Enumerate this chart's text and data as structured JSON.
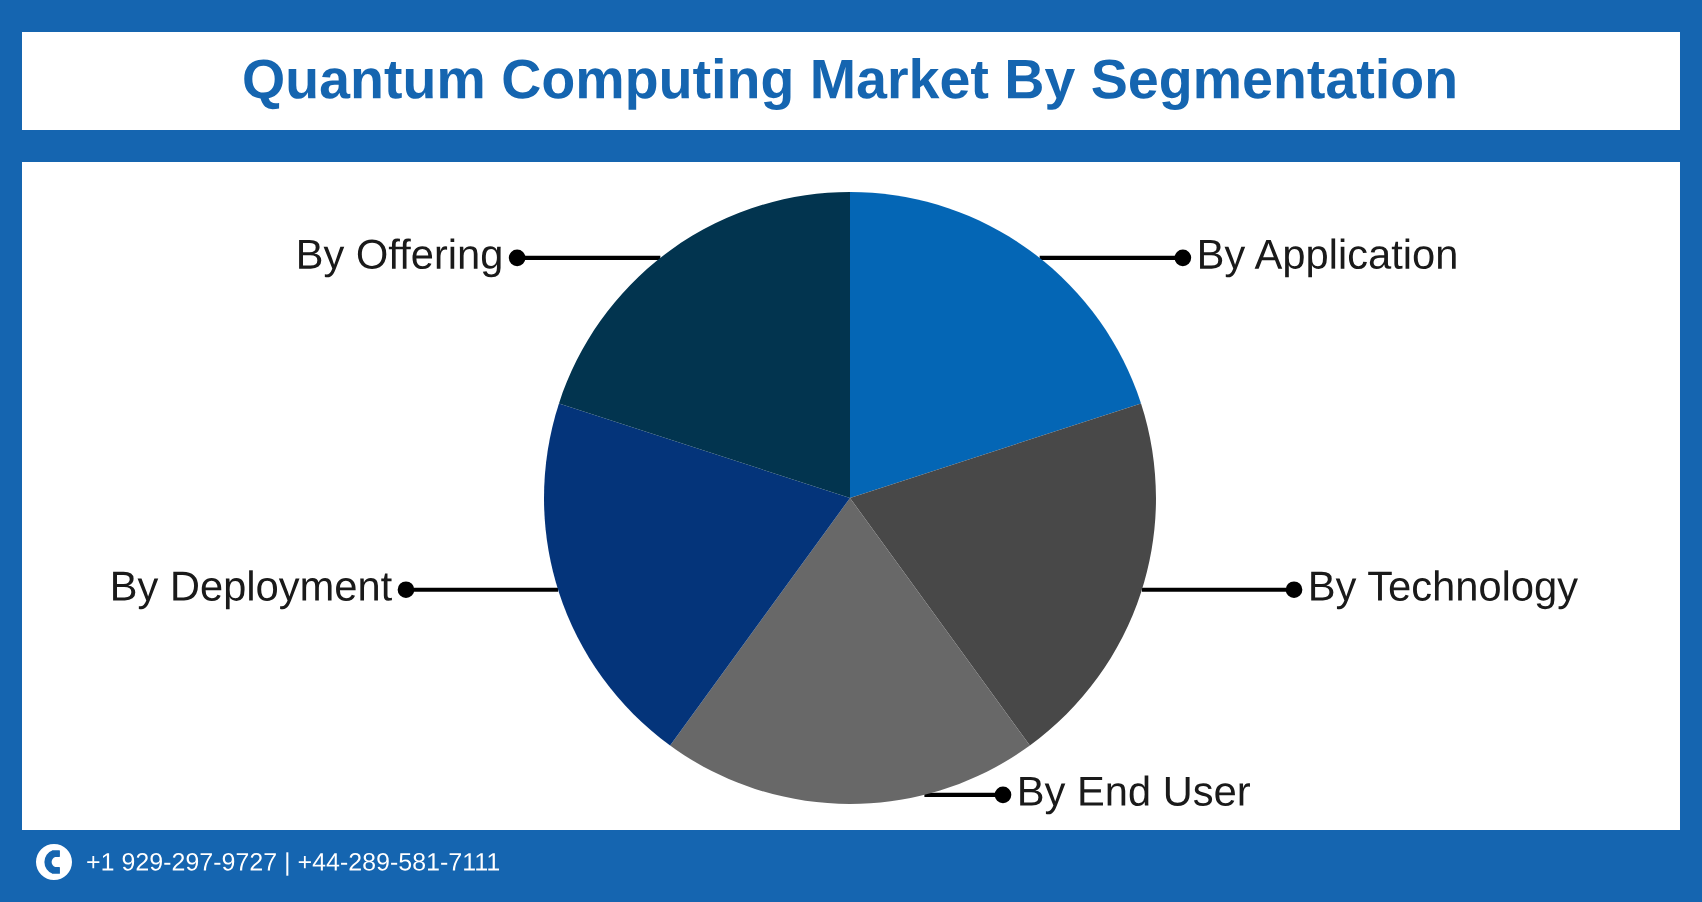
{
  "chart_data": {
    "type": "pie",
    "title": "Quantum Computing Market By Segmentation",
    "categories": [
      "By Application",
      "By Technology",
      "By End User",
      "By Deployment",
      "By Offering"
    ],
    "values": [
      20,
      20,
      20,
      20,
      20
    ],
    "colors": [
      "#0466b5",
      "#484848",
      "#686868",
      "#04347a",
      "#02344f"
    ],
    "annotations": [
      "+1 929-297-9727 | +44-289-581-7111"
    ]
  }
}
